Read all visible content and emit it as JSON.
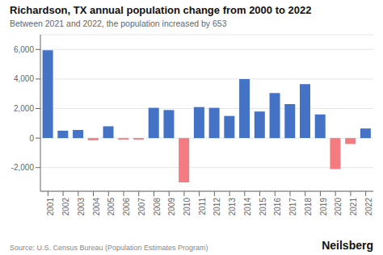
{
  "chart_data": {
    "type": "bar",
    "title": "Richardson, TX annual population change from 2000 to 2022",
    "subtitle": "Between 2021 and 2022, the population increased by 653",
    "annotations": [
      "Source: U.S. Census Bureau (Population Estimates Program)",
      "Neilsberg"
    ],
    "categories": [
      "2001",
      "2002",
      "2003",
      "2004",
      "2005",
      "2006",
      "2007",
      "2008",
      "2009",
      "2010",
      "2011",
      "2012",
      "2013",
      "2014",
      "2015",
      "2016",
      "2017",
      "2018",
      "2019",
      "2020",
      "2021",
      "2022"
    ],
    "values": [
      5950,
      500,
      550,
      -150,
      800,
      -100,
      -100,
      2050,
      1900,
      -3000,
      2100,
      2050,
      1500,
      4000,
      1800,
      3050,
      2300,
      3650,
      1600,
      -2100,
      -400,
      650
    ],
    "colors": [
      "#4472C4",
      "#4472C4",
      "#4472C4",
      "#F47C80",
      "#4472C4",
      "#F47C80",
      "#F47C80",
      "#4472C4",
      "#4472C4",
      "#F47C80",
      "#4472C4",
      "#4472C4",
      "#4472C4",
      "#4472C4",
      "#4472C4",
      "#4472C4",
      "#4472C4",
      "#4472C4",
      "#4472C4",
      "#F47C80",
      "#F47C80",
      "#4472C4"
    ],
    "ylim": [
      -3600,
      7000
    ],
    "yticks": [
      {
        "value": -2000,
        "label": "-2,000"
      },
      0,
      {
        "value": 2000,
        "label": "2,000"
      },
      {
        "value": 4000,
        "label": "4,000"
      },
      {
        "value": 6000,
        "label": "6,000"
      }
    ],
    "grid": true
  }
}
